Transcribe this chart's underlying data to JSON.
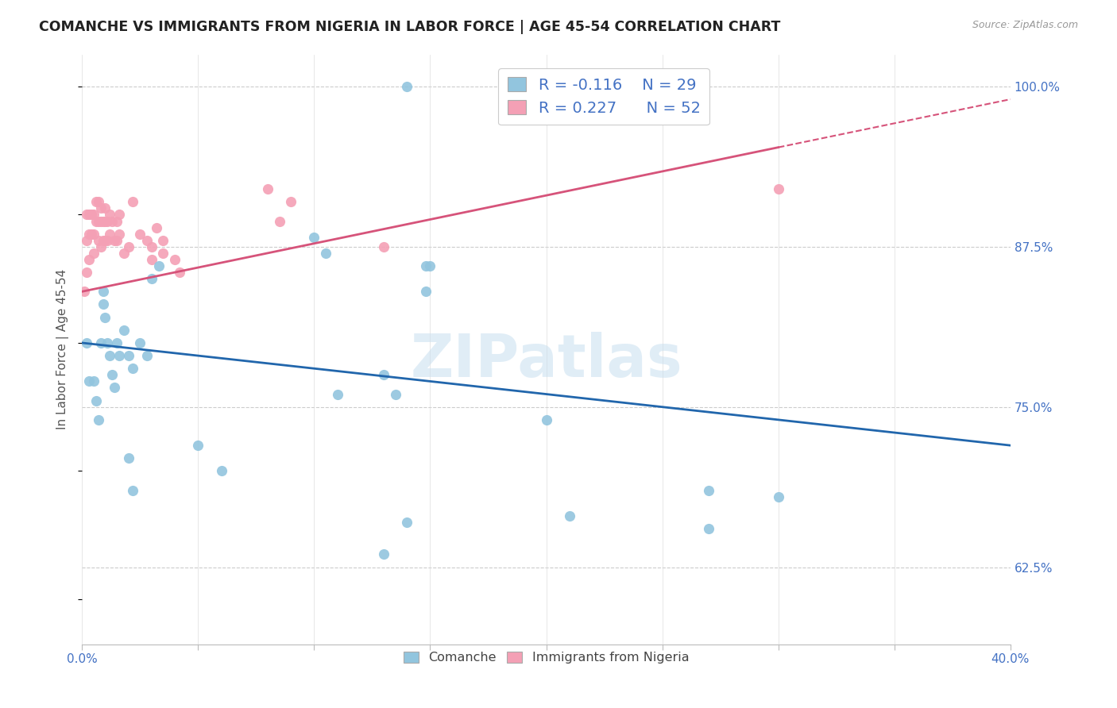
{
  "title": "COMANCHE VS IMMIGRANTS FROM NIGERIA IN LABOR FORCE | AGE 45-54 CORRELATION CHART",
  "source": "Source: ZipAtlas.com",
  "ylabel": "In Labor Force | Age 45-54",
  "xlim": [
    0.0,
    0.4
  ],
  "ylim": [
    0.565,
    1.025
  ],
  "xtick_positions": [
    0.0,
    0.05,
    0.1,
    0.15,
    0.2,
    0.25,
    0.3,
    0.35,
    0.4
  ],
  "ytick_positions": [
    1.0,
    0.875,
    0.75,
    0.625
  ],
  "ytick_labels": [
    "100.0%",
    "87.5%",
    "75.0%",
    "62.5%"
  ],
  "watermark": "ZIPatlas",
  "legend_r_comanche": "-0.116",
  "legend_n_comanche": "29",
  "legend_r_nigeria": "0.227",
  "legend_n_nigeria": "52",
  "comanche_color": "#92c5de",
  "nigeria_color": "#f4a0b5",
  "trend_comanche_color": "#2166ac",
  "trend_nigeria_color": "#d6537a",
  "comanche_x": [
    0.002,
    0.003,
    0.005,
    0.006,
    0.007,
    0.008,
    0.009,
    0.009,
    0.01,
    0.011,
    0.012,
    0.013,
    0.014,
    0.015,
    0.016,
    0.018,
    0.02,
    0.022,
    0.025,
    0.028,
    0.03,
    0.033,
    0.1,
    0.105,
    0.11,
    0.13,
    0.135,
    0.148,
    0.148,
    0.15,
    0.2,
    0.27,
    0.14
  ],
  "comanche_y": [
    0.8,
    0.77,
    0.77,
    0.755,
    0.74,
    0.8,
    0.84,
    0.83,
    0.82,
    0.8,
    0.79,
    0.775,
    0.765,
    0.8,
    0.79,
    0.81,
    0.79,
    0.78,
    0.8,
    0.79,
    0.85,
    0.86,
    0.882,
    0.87,
    0.76,
    0.775,
    0.76,
    0.84,
    0.86,
    0.86,
    0.74,
    0.685,
    1.0
  ],
  "comanche_lowx": [
    0.02,
    0.022,
    0.05,
    0.06,
    0.13,
    0.14,
    0.21,
    0.27,
    0.3
  ],
  "comanche_lowy": [
    0.71,
    0.685,
    0.72,
    0.7,
    0.635,
    0.66,
    0.665,
    0.655,
    0.68
  ],
  "nigeria_x": [
    0.001,
    0.002,
    0.002,
    0.002,
    0.003,
    0.003,
    0.003,
    0.004,
    0.004,
    0.005,
    0.005,
    0.005,
    0.006,
    0.006,
    0.007,
    0.007,
    0.007,
    0.008,
    0.008,
    0.008,
    0.009,
    0.009,
    0.01,
    0.01,
    0.01,
    0.011,
    0.011,
    0.012,
    0.012,
    0.013,
    0.014,
    0.015,
    0.015,
    0.016,
    0.016,
    0.018,
    0.02,
    0.022,
    0.025,
    0.028,
    0.03,
    0.03,
    0.032,
    0.035,
    0.035,
    0.04,
    0.042,
    0.08,
    0.085,
    0.09,
    0.13,
    0.3
  ],
  "nigeria_y": [
    0.84,
    0.9,
    0.88,
    0.855,
    0.9,
    0.885,
    0.865,
    0.9,
    0.885,
    0.9,
    0.885,
    0.87,
    0.91,
    0.895,
    0.91,
    0.895,
    0.88,
    0.905,
    0.895,
    0.875,
    0.895,
    0.88,
    0.905,
    0.895,
    0.88,
    0.895,
    0.88,
    0.9,
    0.885,
    0.895,
    0.88,
    0.895,
    0.88,
    0.9,
    0.885,
    0.87,
    0.875,
    0.91,
    0.885,
    0.88,
    0.875,
    0.865,
    0.89,
    0.88,
    0.87,
    0.865,
    0.855,
    0.92,
    0.895,
    0.91,
    0.875,
    0.92
  ],
  "trend_comanche_x0": 0.0,
  "trend_comanche_y0": 0.8,
  "trend_comanche_x1": 0.4,
  "trend_comanche_y1": 0.72,
  "trend_nigeria_x0": 0.0,
  "trend_nigeria_y0": 0.84,
  "trend_nigeria_x1": 0.4,
  "trend_nigeria_y1": 0.99,
  "trend_nigeria_solid_end": 0.3,
  "trend_comanche_solid_end": 0.4
}
